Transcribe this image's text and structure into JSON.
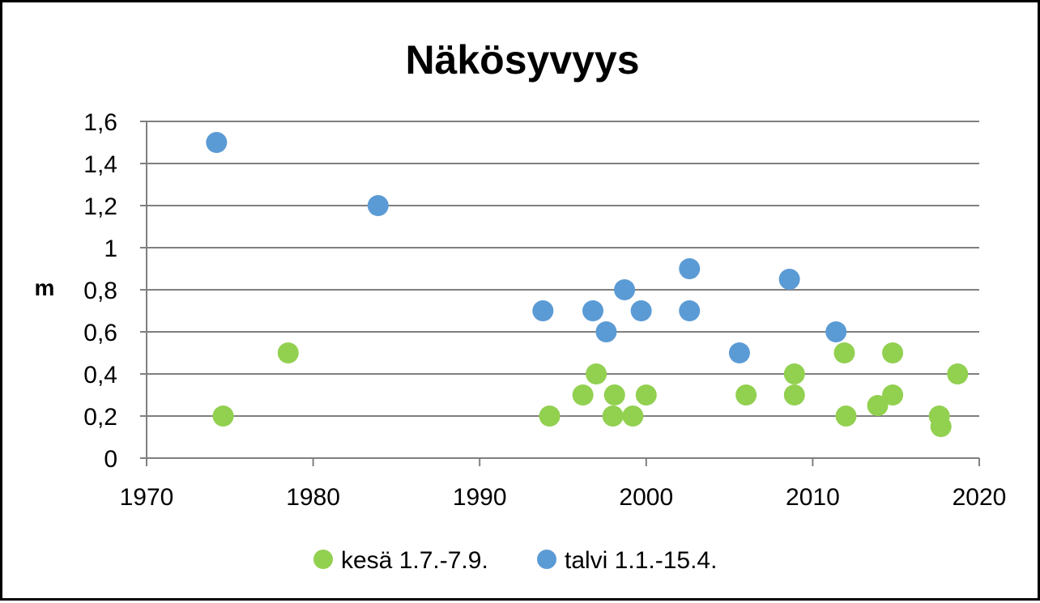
{
  "chart_data": {
    "type": "scatter",
    "title": "Näkösyvyys",
    "xlabel": "",
    "ylabel": "m",
    "xlim": [
      1970,
      2020
    ],
    "ylim": [
      0,
      1.6
    ],
    "x_ticks": [
      1970,
      1980,
      1990,
      2000,
      2010,
      2020
    ],
    "y_ticks": [
      0,
      0.2,
      0.4,
      0.6,
      0.8,
      1,
      1.2,
      1.4,
      1.6
    ],
    "y_tick_labels": [
      "0",
      "0,2",
      "0,4",
      "0,6",
      "0,8",
      "1",
      "1,2",
      "1,4",
      "1,6"
    ],
    "grid": "horizontal",
    "legend_position": "bottom",
    "series": [
      {
        "name": "kesä 1.7.-7.9.",
        "color": "#92d050",
        "points": [
          [
            1974.6,
            0.2
          ],
          [
            1978.5,
            0.5
          ],
          [
            1994.2,
            0.2
          ],
          [
            1996.2,
            0.3
          ],
          [
            1997.0,
            0.4
          ],
          [
            1998.0,
            0.2
          ],
          [
            1998.1,
            0.3
          ],
          [
            1999.2,
            0.2
          ],
          [
            2000.0,
            0.3
          ],
          [
            2006.0,
            0.3
          ],
          [
            2008.9,
            0.4
          ],
          [
            2008.9,
            0.3
          ],
          [
            2011.9,
            0.5
          ],
          [
            2012.0,
            0.2
          ],
          [
            2013.9,
            0.25
          ],
          [
            2014.8,
            0.5
          ],
          [
            2014.8,
            0.3
          ],
          [
            2017.6,
            0.2
          ],
          [
            2017.7,
            0.15
          ],
          [
            2018.7,
            0.4
          ]
        ]
      },
      {
        "name": "talvi 1.1.-15.4.",
        "color": "#5b9bd5",
        "points": [
          [
            1974.2,
            1.5
          ],
          [
            1983.9,
            1.2
          ],
          [
            1993.8,
            0.7
          ],
          [
            1996.8,
            0.7
          ],
          [
            1997.6,
            0.6
          ],
          [
            1998.7,
            0.8
          ],
          [
            1999.7,
            0.7
          ],
          [
            2002.6,
            0.9
          ],
          [
            2002.6,
            0.7
          ],
          [
            2005.6,
            0.5
          ],
          [
            2008.6,
            0.85
          ],
          [
            2011.4,
            0.6
          ]
        ]
      }
    ]
  }
}
